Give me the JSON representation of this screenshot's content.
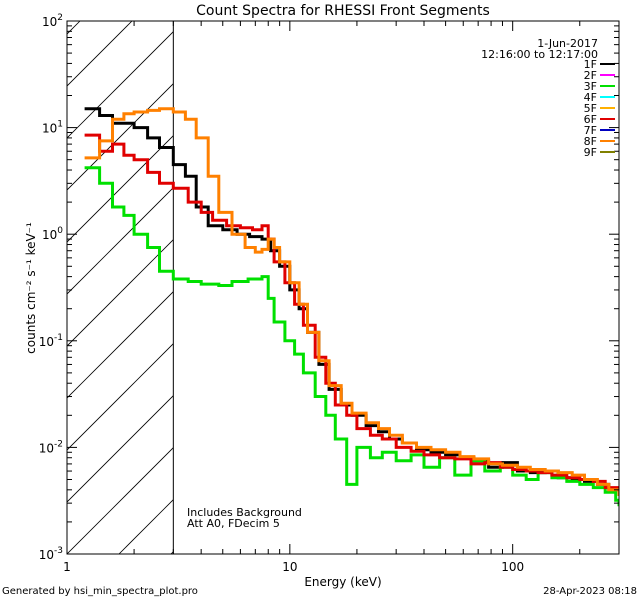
{
  "chart_data": {
    "type": "line",
    "title": "Count Spectra for RHESSI Front Segments",
    "xlabel": "Energy (keV)",
    "ylabel": "counts cm⁻² s⁻¹ keV⁻¹",
    "xscale": "log",
    "yscale": "log",
    "xlim": [
      1.0,
      300.0
    ],
    "ylim": [
      0.001,
      100.0
    ],
    "x_ticks": [
      {
        "value": 1,
        "label": "1"
      },
      {
        "value": 10,
        "label": "10"
      },
      {
        "value": 100,
        "label": "100"
      }
    ],
    "y_ticks": [
      {
        "value": 100,
        "label": "10",
        "exp": "2"
      },
      {
        "value": 10,
        "label": "10",
        "exp": "1"
      },
      {
        "value": 1,
        "label": "10",
        "exp": "0"
      },
      {
        "value": 0.1,
        "label": "10",
        "exp": "-1"
      },
      {
        "value": 0.01,
        "label": "10",
        "exp": "-2"
      },
      {
        "value": 0.001,
        "label": "10",
        "exp": "-3"
      }
    ],
    "attenuator_cutoff_kev": 3.0,
    "legend": {
      "date": "1-Jun-2017",
      "time_range": "12:16:00 to 12:17:00",
      "entries": [
        {
          "name": "1F",
          "color": "#000000"
        },
        {
          "name": "2F",
          "color": "#ff00ff"
        },
        {
          "name": "3F",
          "color": "#00e000"
        },
        {
          "name": "4F",
          "color": "#00ffff"
        },
        {
          "name": "5F",
          "color": "#ffb000"
        },
        {
          "name": "6F",
          "color": "#e00000"
        },
        {
          "name": "7F",
          "color": "#0000c0"
        },
        {
          "name": "8F",
          "color": "#ff8000"
        },
        {
          "name": "9F",
          "color": "#808000"
        }
      ]
    },
    "annotations": [
      "Includes Background",
      "Att A0, FDecim 5"
    ],
    "series": [
      {
        "name": "1F",
        "color": "#000000",
        "x": [
          1.2,
          1.4,
          1.6,
          1.8,
          2.0,
          2.3,
          2.6,
          3.0,
          3.4,
          3.8,
          4.3,
          5.0,
          5.8,
          6.6,
          7.5,
          8.2,
          9.0,
          10.0,
          11.0,
          12.0,
          13.5,
          15.0,
          17.0,
          19.0,
          22.0,
          25.0,
          28.0,
          32.0,
          37.0,
          43.0,
          50.0,
          58.0,
          67.0,
          78.0,
          90.0,
          105.0,
          120.0,
          140.0,
          160.0,
          185.0,
          210.0,
          240.0,
          270.0,
          300.0
        ],
        "y": [
          15.0,
          13.0,
          11.0,
          11.0,
          10.0,
          8.0,
          6.5,
          4.5,
          3.5,
          1.8,
          1.2,
          1.1,
          1.0,
          0.95,
          0.9,
          0.7,
          0.5,
          0.3,
          0.2,
          0.12,
          0.06,
          0.035,
          0.025,
          0.02,
          0.016,
          0.014,
          0.012,
          0.011,
          0.0095,
          0.009,
          0.0085,
          0.008,
          0.0075,
          0.0065,
          0.0072,
          0.006,
          0.0058,
          0.006,
          0.0052,
          0.005,
          0.0048,
          0.0045,
          0.004,
          0.0035
        ]
      },
      {
        "name": "3F",
        "color": "#00e000",
        "x": [
          1.2,
          1.4,
          1.6,
          1.8,
          2.0,
          2.3,
          2.6,
          3.0,
          3.5,
          4.0,
          4.8,
          5.5,
          6.5,
          7.5,
          8.0,
          8.5,
          9.5,
          10.5,
          11.5,
          13.0,
          14.5,
          16.0,
          18.0,
          20.0,
          23.0,
          26.0,
          30.0,
          35.0,
          40.0,
          47.0,
          55.0,
          65.0,
          75.0,
          88.0,
          100.0,
          115.0,
          130.0,
          150.0,
          175.0,
          200.0,
          230.0,
          260.0,
          290.0,
          300.0
        ],
        "y": [
          4.2,
          3.0,
          1.8,
          1.5,
          1.0,
          0.75,
          0.45,
          0.38,
          0.36,
          0.34,
          0.33,
          0.36,
          0.38,
          0.4,
          0.25,
          0.15,
          0.1,
          0.075,
          0.05,
          0.03,
          0.02,
          0.012,
          0.0045,
          0.01,
          0.008,
          0.009,
          0.0075,
          0.0085,
          0.0065,
          0.008,
          0.0055,
          0.0075,
          0.006,
          0.0065,
          0.0055,
          0.005,
          0.0058,
          0.0052,
          0.0048,
          0.0045,
          0.0042,
          0.0038,
          0.0032,
          0.0028
        ]
      },
      {
        "name": "6F",
        "color": "#e00000",
        "x": [
          1.2,
          1.4,
          1.6,
          1.8,
          2.0,
          2.3,
          2.6,
          3.0,
          3.5,
          4.0,
          4.5,
          5.2,
          6.0,
          6.8,
          7.5,
          8.0,
          8.5,
          9.5,
          10.5,
          11.5,
          13.0,
          14.5,
          16.0,
          18.0,
          20.0,
          23.0,
          26.0,
          30.0,
          35.0,
          40.0,
          47.0,
          55.0,
          65.0,
          75.0,
          88.0,
          100.0,
          115.0,
          130.0,
          150.0,
          175.0,
          200.0,
          230.0,
          260.0,
          300.0
        ],
        "y": [
          8.5,
          6.0,
          7.0,
          5.5,
          5.0,
          3.8,
          3.0,
          2.7,
          2.0,
          1.6,
          1.35,
          1.2,
          1.15,
          1.1,
          1.2,
          0.9,
          0.55,
          0.35,
          0.22,
          0.14,
          0.07,
          0.04,
          0.025,
          0.02,
          0.015,
          0.013,
          0.012,
          0.01,
          0.0092,
          0.0085,
          0.008,
          0.0078,
          0.007,
          0.0072,
          0.0065,
          0.0062,
          0.006,
          0.0058,
          0.0055,
          0.0052,
          0.005,
          0.0048,
          0.0042,
          0.0038
        ]
      },
      {
        "name": "8F",
        "color": "#ff8000",
        "x": [
          1.2,
          1.4,
          1.6,
          1.8,
          2.0,
          2.3,
          2.6,
          3.0,
          3.4,
          3.8,
          4.3,
          4.8,
          5.5,
          6.3,
          7.0,
          7.5,
          8.0,
          8.5,
          9.0,
          10.0,
          11.0,
          12.0,
          13.5,
          15.0,
          17.0,
          19.0,
          22.0,
          25.0,
          28.0,
          32.0,
          37.0,
          43.0,
          50.0,
          58.0,
          67.0,
          78.0,
          90.0,
          105.0,
          120.0,
          140.0,
          160.0,
          185.0,
          210.0,
          240.0,
          270.0,
          300.0
        ],
        "y": [
          5.2,
          7.5,
          12.0,
          13.5,
          14.0,
          14.5,
          15.0,
          14.0,
          12.0,
          8.0,
          3.5,
          1.6,
          1.0,
          0.75,
          0.68,
          0.72,
          0.9,
          0.75,
          0.55,
          0.35,
          0.22,
          0.12,
          0.065,
          0.038,
          0.026,
          0.021,
          0.017,
          0.015,
          0.013,
          0.011,
          0.01,
          0.0095,
          0.009,
          0.0082,
          0.0078,
          0.007,
          0.0068,
          0.0065,
          0.0062,
          0.006,
          0.0058,
          0.0055,
          0.005,
          0.0045,
          0.004,
          0.0035
        ]
      }
    ]
  },
  "footer": {
    "generated_by": "Generated by hsi_min_spectra_plot.pro",
    "date": "28-Apr-2023 08:18"
  }
}
